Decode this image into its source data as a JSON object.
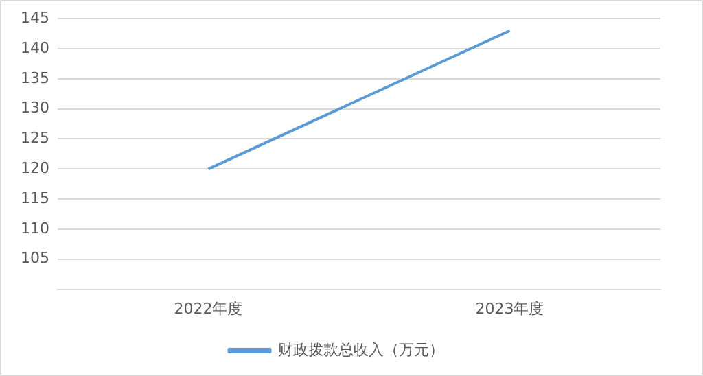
{
  "chart_data": {
    "type": "line",
    "categories": [
      "2022年度",
      "2023年度"
    ],
    "series": [
      {
        "name": "财政拨款总收入（万元）",
        "color": "#5b9bd5",
        "values": [
          120,
          143
        ]
      }
    ],
    "ylim": [
      100,
      145
    ],
    "yticks": [
      {
        "value": 100,
        "label": null
      },
      105,
      110,
      115,
      120,
      125,
      130,
      135,
      140,
      145
    ],
    "grid": "y",
    "legend": "bottom",
    "marker": "none"
  }
}
